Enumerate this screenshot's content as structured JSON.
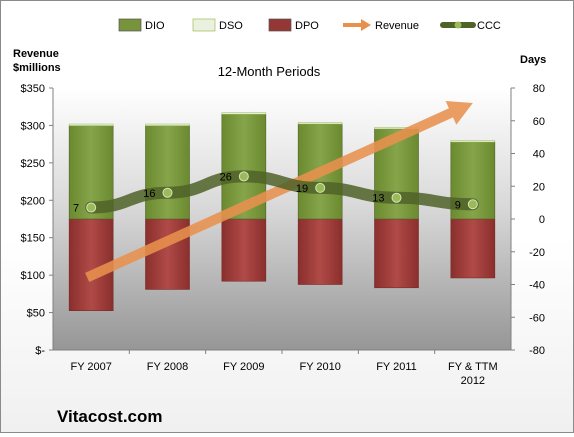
{
  "chart_data": {
    "type": "bar",
    "title": "12-Month Periods",
    "footer": "Vitacost.com",
    "left_axis_label_lines": [
      "Revenue",
      "$millions"
    ],
    "right_axis_label": "Days",
    "left_axis": {
      "min": 0,
      "max": 350,
      "step": 50,
      "tick_labels": [
        "$-",
        "$50",
        "$100",
        "$150",
        "$200",
        "$250",
        "$300",
        "$350"
      ]
    },
    "right_axis": {
      "min": -80,
      "max": 80,
      "step": 20,
      "tick_labels": [
        "-80",
        "-60",
        "-40",
        "-20",
        "0",
        "20",
        "40",
        "60",
        "80"
      ]
    },
    "categories": [
      [
        "FY 2007"
      ],
      [
        "FY 2008"
      ],
      [
        "FY 2009"
      ],
      [
        "FY 2010"
      ],
      [
        "FY 2011"
      ],
      [
        "FY & TTM",
        "2012"
      ]
    ],
    "legend_position": "top",
    "grid": false,
    "series": [
      {
        "name": "DIO",
        "kind": "bar-days-above-zero",
        "values": [
          57,
          57,
          64,
          58,
          55,
          47
        ],
        "color": "#77933c"
      },
      {
        "name": "DSO",
        "kind": "bar-days-stacked",
        "values": [
          1,
          1,
          1,
          1,
          1,
          1
        ],
        "color": "#ebf1de"
      },
      {
        "name": "DPO",
        "kind": "bar-days-below-zero",
        "values": [
          -56,
          -43,
          -38,
          -40,
          -42,
          -36
        ],
        "color": "#953735"
      },
      {
        "name": "Revenue",
        "kind": "arrow-trend",
        "values": [
          97,
          145,
          195,
          225,
          275,
          330
        ],
        "color": "#e8914d"
      },
      {
        "name": "CCC",
        "kind": "line-days",
        "values": [
          7,
          16,
          26,
          19,
          13,
          9
        ],
        "color": "#4f6228",
        "data_labels": [
          "7",
          "16",
          "26",
          "19",
          "13",
          "9"
        ]
      }
    ]
  }
}
